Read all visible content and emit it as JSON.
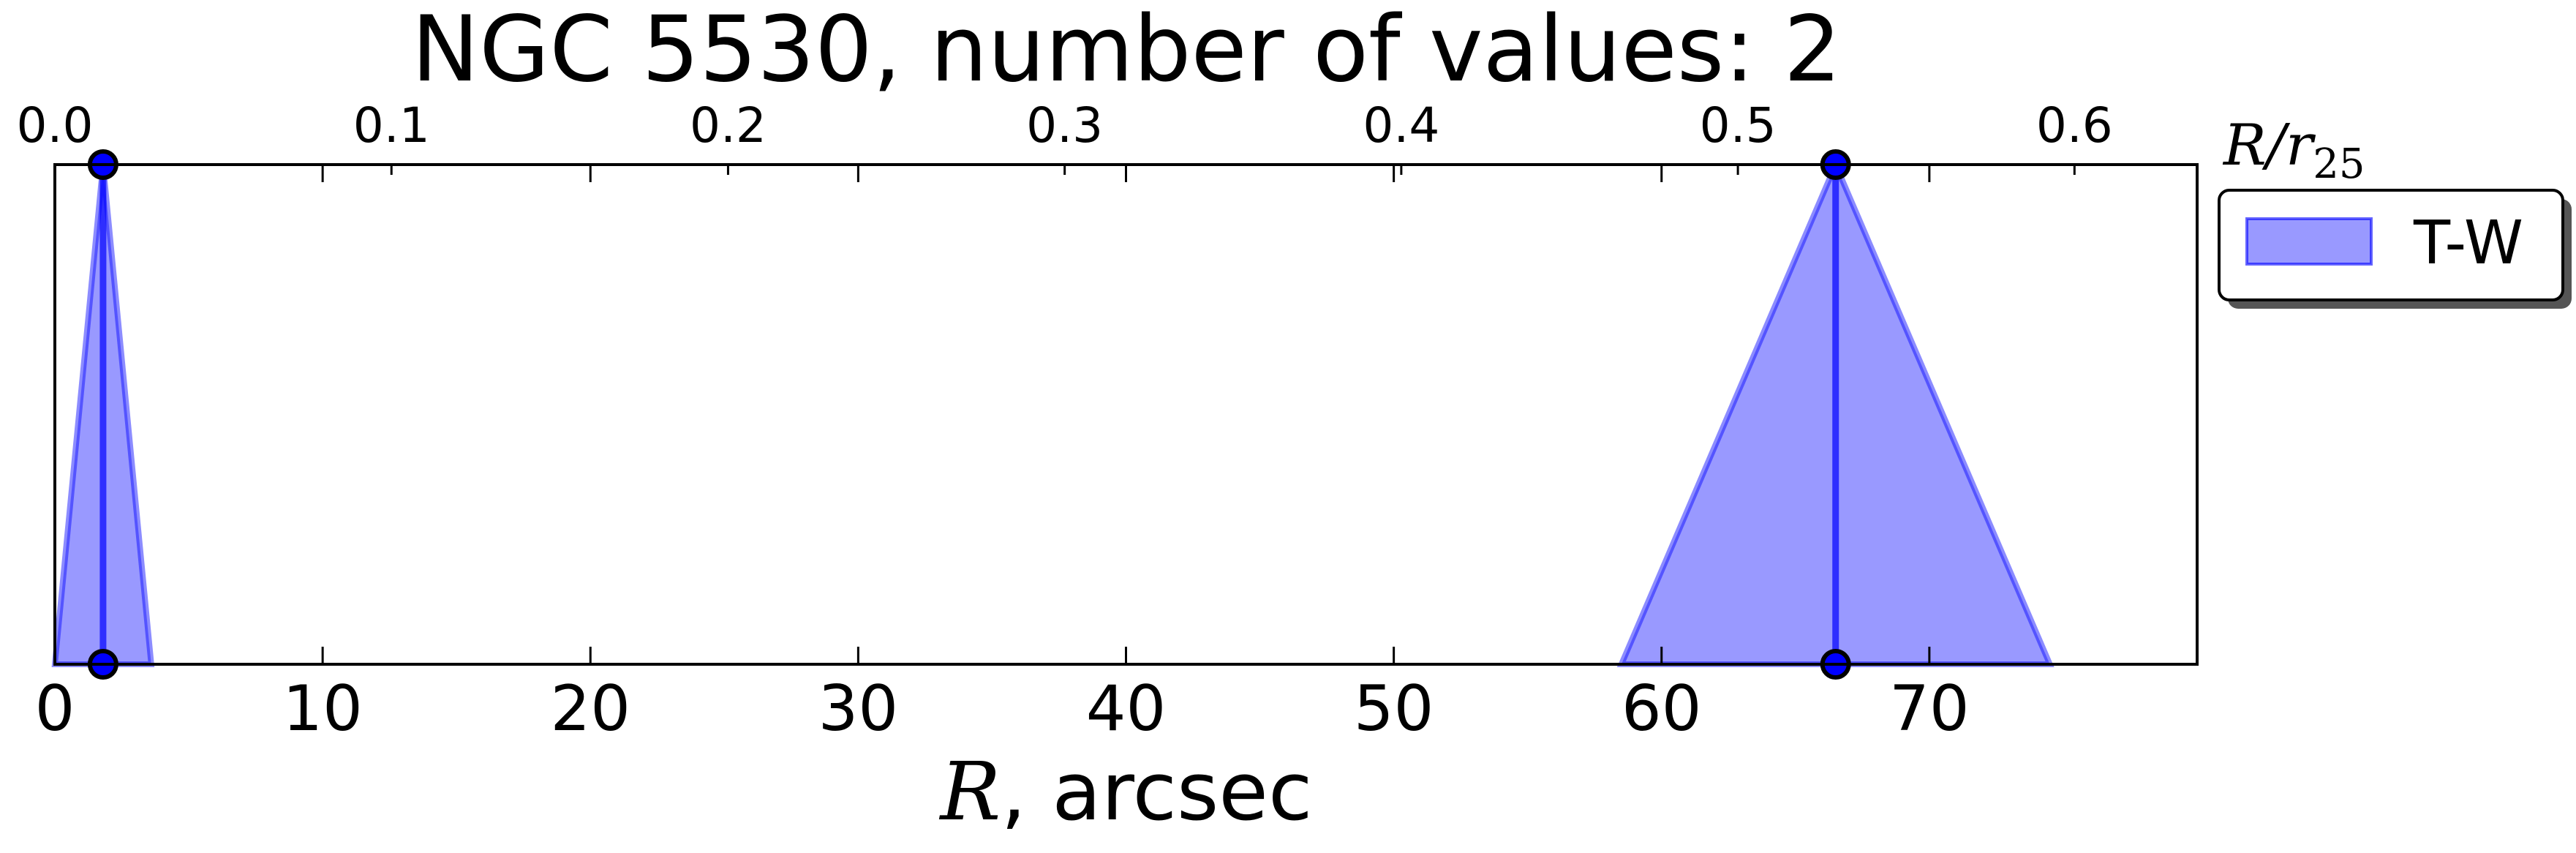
{
  "chart_data": {
    "type": "area",
    "title": "NGC 5530, number of values: 2",
    "xlabel": {
      "var": "R",
      "rest": ", arcsec"
    },
    "xlim": [
      0,
      80
    ],
    "xticks": [
      0,
      10,
      20,
      30,
      40,
      50,
      60,
      70
    ],
    "xtick_labels": [
      "0",
      "10",
      "20",
      "30",
      "40",
      "50",
      "60",
      "70"
    ],
    "secondary_xaxis": {
      "label": {
        "var": "R/r",
        "sub": "25"
      },
      "ticks": [
        0.0,
        0.1,
        0.2,
        0.3,
        0.4,
        0.5,
        0.6
      ],
      "tick_labels": [
        "0.0",
        "0.1",
        "0.2",
        "0.3",
        "0.4",
        "0.5",
        "0.6"
      ],
      "x_per_tick": 125.7
    },
    "y_visible": false,
    "grid": false,
    "legend": {
      "placement": "outside-right-top",
      "entries": [
        "T-W"
      ]
    },
    "series": [
      {
        "name": "T-W",
        "color": "#0000ff",
        "fill_alpha": 0.4,
        "points": [
          {
            "x": 1.8,
            "x_min": 0.0,
            "x_max": 3.6
          },
          {
            "x": 66.5,
            "x_min": 58.5,
            "x_max": 74.5
          }
        ]
      }
    ]
  }
}
